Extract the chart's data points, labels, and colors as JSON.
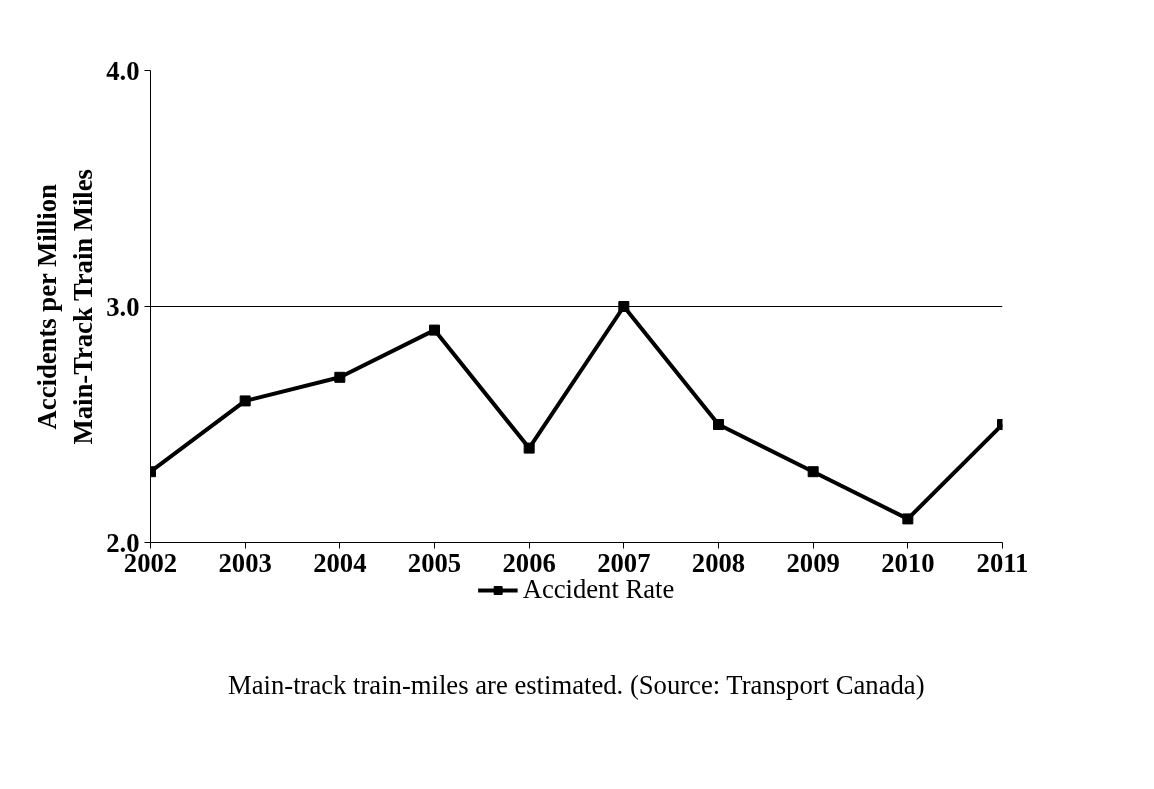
{
  "chart_data": {
    "type": "line",
    "ylabel": "Accidents per Million\nMain-Track Train Miles",
    "categories": [
      "2002",
      "2003",
      "2004",
      "2005",
      "2006",
      "2007",
      "2008",
      "2009",
      "2010",
      "2011"
    ],
    "series": [
      {
        "name": "Accident Rate",
        "color": "#000000",
        "values": [
          2.3,
          2.6,
          2.7,
          2.9,
          2.4,
          3.0,
          2.5,
          2.3,
          2.1,
          2.5
        ]
      }
    ],
    "ylim": [
      2.0,
      4.0
    ],
    "yticks": [
      {
        "value": 2.0,
        "label": "2.0"
      },
      {
        "value": 3.0,
        "label": "3.0"
      },
      {
        "value": 4.0,
        "label": "4.0"
      }
    ],
    "grid": "y",
    "legend": "bottom",
    "marker": "square",
    "line_style": "solid",
    "annotations": [
      "Main-track train-miles are estimated. (Source: Transport Canada)"
    ]
  }
}
